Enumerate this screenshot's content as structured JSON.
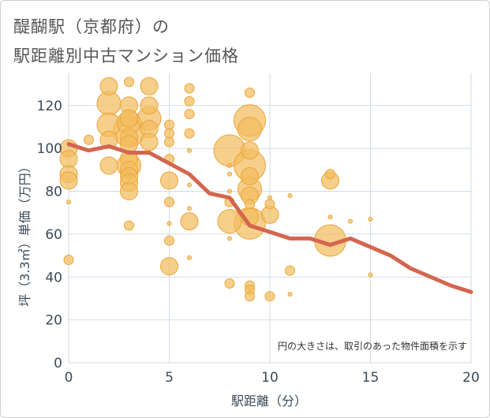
{
  "title": {
    "line1": "醍醐駅（京都府）の",
    "line2": "駅距離別中古マンション価格"
  },
  "note": "円の大きさは、取引のあった物件面積を示す",
  "colors": {
    "bubble_fill": "#f2bc5e",
    "bubble_stroke": "#eaa53a",
    "line": "#d4664f",
    "grid": "#d2dbe5",
    "axis_text": "#3c4a57"
  },
  "chart_data": {
    "type": "scatter",
    "xlabel": "駅距離（分）",
    "ylabel": "坪（3.3㎡）単価（万円）",
    "xlim": [
      0,
      20
    ],
    "ylim": [
      0,
      135
    ],
    "xticks": [
      "0",
      "5",
      "10",
      "15",
      "20"
    ],
    "yticks": [
      "0",
      "20",
      "40",
      "60",
      "80",
      "100",
      "120"
    ],
    "grid": true,
    "bubbles": [
      {
        "x": 0,
        "y": 100,
        "r": 3
      },
      {
        "x": 0,
        "y": 95,
        "r": 3
      },
      {
        "x": 0,
        "y": 88,
        "r": 3
      },
      {
        "x": 0,
        "y": 85,
        "r": 3
      },
      {
        "x": 0,
        "y": 75,
        "r": 1
      },
      {
        "x": 0,
        "y": 48,
        "r": 2
      },
      {
        "x": 1,
        "y": 104,
        "r": 2
      },
      {
        "x": 2,
        "y": 129,
        "r": 3
      },
      {
        "x": 2,
        "y": 121,
        "r": 4
      },
      {
        "x": 2,
        "y": 111,
        "r": 4
      },
      {
        "x": 2,
        "y": 104,
        "r": 3
      },
      {
        "x": 2,
        "y": 92,
        "r": 3
      },
      {
        "x": 3,
        "y": 131,
        "r": 2
      },
      {
        "x": 3,
        "y": 120,
        "r": 3
      },
      {
        "x": 3,
        "y": 114,
        "r": 3
      },
      {
        "x": 3,
        "y": 112,
        "r": 4
      },
      {
        "x": 3,
        "y": 108,
        "r": 5
      },
      {
        "x": 3,
        "y": 105,
        "r": 3
      },
      {
        "x": 3,
        "y": 102,
        "r": 3
      },
      {
        "x": 3,
        "y": 95,
        "r": 3
      },
      {
        "x": 3,
        "y": 92,
        "r": 4
      },
      {
        "x": 3,
        "y": 90,
        "r": 3
      },
      {
        "x": 3,
        "y": 87,
        "r": 3
      },
      {
        "x": 3,
        "y": 84,
        "r": 3
      },
      {
        "x": 3,
        "y": 80,
        "r": 3
      },
      {
        "x": 3,
        "y": 64,
        "r": 2
      },
      {
        "x": 4,
        "y": 129,
        "r": 3
      },
      {
        "x": 4,
        "y": 120,
        "r": 3
      },
      {
        "x": 4,
        "y": 114,
        "r": 4
      },
      {
        "x": 4,
        "y": 109,
        "r": 3
      },
      {
        "x": 4,
        "y": 103,
        "r": 3
      },
      {
        "x": 5,
        "y": 111,
        "r": 2
      },
      {
        "x": 5,
        "y": 107,
        "r": 2
      },
      {
        "x": 5,
        "y": 103,
        "r": 2
      },
      {
        "x": 5,
        "y": 95,
        "r": 2
      },
      {
        "x": 5,
        "y": 85,
        "r": 3
      },
      {
        "x": 5,
        "y": 75,
        "r": 2
      },
      {
        "x": 5,
        "y": 65,
        "r": 1
      },
      {
        "x": 5,
        "y": 57,
        "r": 2
      },
      {
        "x": 5,
        "y": 45,
        "r": 3
      },
      {
        "x": 6,
        "y": 128,
        "r": 2
      },
      {
        "x": 6,
        "y": 122,
        "r": 2
      },
      {
        "x": 6,
        "y": 116,
        "r": 2
      },
      {
        "x": 6,
        "y": 107,
        "r": 2
      },
      {
        "x": 6,
        "y": 99,
        "r": 1
      },
      {
        "x": 6,
        "y": 83,
        "r": 1
      },
      {
        "x": 6,
        "y": 72,
        "r": 1
      },
      {
        "x": 6,
        "y": 66,
        "r": 3
      },
      {
        "x": 6,
        "y": 49,
        "r": 1
      },
      {
        "x": 8,
        "y": 99,
        "r": 5
      },
      {
        "x": 8,
        "y": 92,
        "r": 1
      },
      {
        "x": 8,
        "y": 88,
        "r": 1
      },
      {
        "x": 8,
        "y": 80,
        "r": 1
      },
      {
        "x": 8,
        "y": 75,
        "r": 2
      },
      {
        "x": 8,
        "y": 66,
        "r": 4
      },
      {
        "x": 8,
        "y": 58,
        "r": 1
      },
      {
        "x": 8,
        "y": 37,
        "r": 2
      },
      {
        "x": 9,
        "y": 126,
        "r": 2
      },
      {
        "x": 9,
        "y": 113,
        "r": 5
      },
      {
        "x": 9,
        "y": 109,
        "r": 4
      },
      {
        "x": 9,
        "y": 99,
        "r": 3
      },
      {
        "x": 9,
        "y": 92,
        "r": 5
      },
      {
        "x": 9,
        "y": 87,
        "r": 3
      },
      {
        "x": 9,
        "y": 81,
        "r": 4
      },
      {
        "x": 9,
        "y": 78,
        "r": 3
      },
      {
        "x": 9,
        "y": 74,
        "r": 2
      },
      {
        "x": 9,
        "y": 68,
        "r": 3
      },
      {
        "x": 9,
        "y": 65,
        "r": 5
      },
      {
        "x": 9,
        "y": 36,
        "r": 2
      },
      {
        "x": 9,
        "y": 34,
        "r": 2
      },
      {
        "x": 9,
        "y": 31,
        "r": 2
      },
      {
        "x": 10,
        "y": 77,
        "r": 1
      },
      {
        "x": 10,
        "y": 74,
        "r": 2
      },
      {
        "x": 10,
        "y": 69,
        "r": 3
      },
      {
        "x": 10,
        "y": 31,
        "r": 2
      },
      {
        "x": 11,
        "y": 78,
        "r": 1
      },
      {
        "x": 11,
        "y": 43,
        "r": 2
      },
      {
        "x": 11,
        "y": 32,
        "r": 1
      },
      {
        "x": 13,
        "y": 88,
        "r": 2
      },
      {
        "x": 13,
        "y": 85,
        "r": 3
      },
      {
        "x": 13,
        "y": 68,
        "r": 1
      },
      {
        "x": 13,
        "y": 57,
        "r": 5
      },
      {
        "x": 14,
        "y": 66,
        "r": 1
      },
      {
        "x": 15,
        "y": 67,
        "r": 1
      },
      {
        "x": 15,
        "y": 41,
        "r": 1
      }
    ],
    "trend": {
      "x": [
        0,
        1,
        2,
        3,
        4,
        5,
        6,
        7,
        8,
        9,
        10,
        11,
        12,
        13,
        14,
        15,
        16,
        17,
        18,
        19,
        20
      ],
      "y": [
        102,
        99,
        101,
        98,
        98,
        93,
        88,
        79,
        77,
        64,
        61,
        58,
        58,
        55,
        58,
        54,
        50,
        44,
        40,
        36,
        33
      ]
    }
  }
}
